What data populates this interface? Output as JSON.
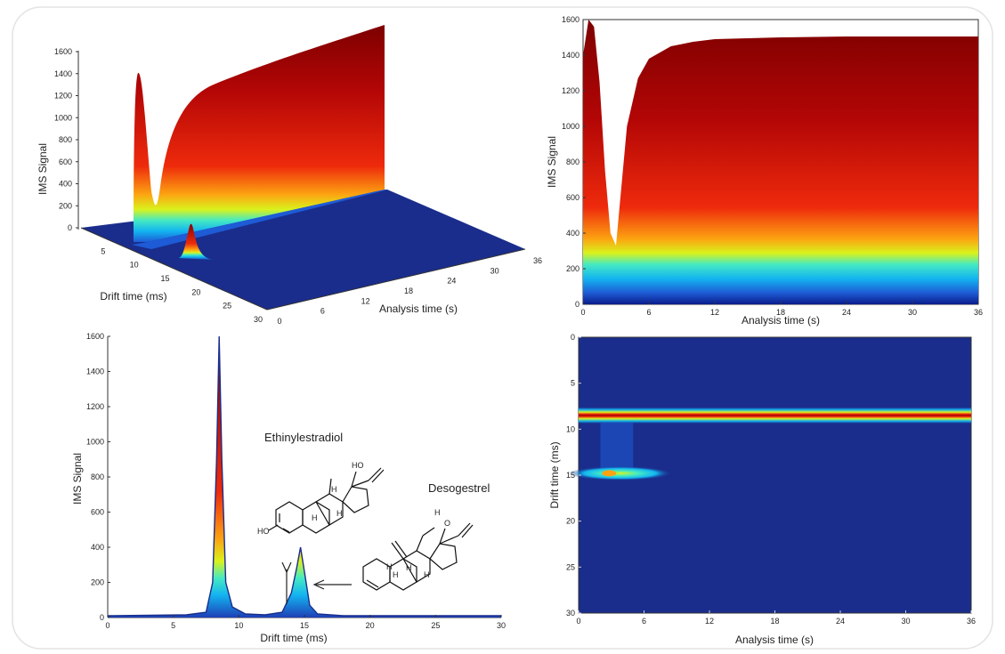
{
  "chart_data": [
    {
      "type": "surface3d",
      "ylabel": "IMS Signal",
      "xlabel": "Drift time (ms)",
      "zlabel": "Analysis time (s)",
      "yticks": [
        "0",
        "200",
        "400",
        "600",
        "800",
        "1000",
        "1200",
        "1400",
        "1600"
      ],
      "xticks": [
        "5",
        "10",
        "15",
        "20",
        "25",
        "30"
      ],
      "zticks": [
        "0",
        "6",
        "12",
        "18",
        "24",
        "30",
        "36"
      ],
      "ylim": [
        0,
        1600
      ]
    },
    {
      "type": "area",
      "ylabel": "IMS Signal",
      "xlabel": "Analysis time (s)",
      "xticks": [
        "0",
        "6",
        "12",
        "18",
        "24",
        "30",
        "36"
      ],
      "yticks": [
        "0",
        "200",
        "400",
        "600",
        "800",
        "1000",
        "1200",
        "1400",
        "1600"
      ],
      "xlim": [
        0,
        36
      ],
      "ylim": [
        0,
        1600
      ],
      "series": [
        {
          "x": [
            0,
            0.5,
            1,
            1.5,
            2,
            2.5,
            3,
            4,
            5,
            6,
            8,
            10,
            12,
            15,
            18,
            24,
            30,
            36
          ],
          "y": [
            1400,
            1600,
            1560,
            1250,
            750,
            400,
            330,
            1000,
            1270,
            1380,
            1450,
            1475,
            1490,
            1495,
            1500,
            1505,
            1505,
            1505
          ]
        }
      ]
    },
    {
      "type": "line",
      "ylabel": "IMS Signal",
      "xlabel": "Drift time (ms)",
      "xticks": [
        "0",
        "5",
        "10",
        "15",
        "20",
        "25",
        "30"
      ],
      "yticks": [
        "0",
        "200",
        "400",
        "600",
        "800",
        "1000",
        "1200",
        "1400",
        "1600"
      ],
      "xlim": [
        0,
        30
      ],
      "ylim": [
        0,
        1600
      ],
      "series": [
        {
          "x": [
            0,
            6,
            7.5,
            8,
            8.3,
            8.5,
            8.7,
            9,
            9.5,
            10.5,
            12,
            13.3,
            14,
            14.4,
            14.7,
            15,
            15.4,
            16,
            18,
            30
          ],
          "y": [
            10,
            15,
            30,
            200,
            900,
            1600,
            900,
            200,
            60,
            20,
            15,
            30,
            140,
            280,
            400,
            260,
            70,
            20,
            10,
            10
          ]
        }
      ],
      "annotations": [
        "Ethinylestradiol",
        "Desogestrel"
      ]
    },
    {
      "type": "heatmap",
      "ylabel": "Drift time (ms)",
      "xlabel": "Analysis time (s)",
      "xticks": [
        "0",
        "6",
        "12",
        "18",
        "24",
        "30",
        "36"
      ],
      "yticks": [
        "0",
        "5",
        "10",
        "15",
        "20",
        "25",
        "30"
      ],
      "xlim": [
        0,
        36
      ],
      "ylim": [
        0,
        30
      ],
      "bands": [
        {
          "drift": 8.5,
          "t_start": 0,
          "t_end": 36,
          "level": "high"
        },
        {
          "drift": 14.8,
          "t_start": 1.5,
          "t_end": 11,
          "level": "medium"
        }
      ]
    }
  ],
  "molecules": {
    "ethinylestradiol": {
      "name": "Ethinylestradiol",
      "atoms": [
        "HO",
        "HO",
        "H",
        "H",
        "H"
      ]
    },
    "desogestrel": {
      "name": "Desogestrel",
      "atoms": [
        "O",
        "H",
        "H",
        "H",
        "H",
        "H"
      ]
    }
  },
  "colors": {
    "base": "#1a2d8c",
    "jet": [
      "#0b1d8a",
      "#1e5bd6",
      "#13b4f0",
      "#45eac2",
      "#d9f21c",
      "#fca311",
      "#ee2a0c",
      "#b30606",
      "#7d0000"
    ]
  }
}
